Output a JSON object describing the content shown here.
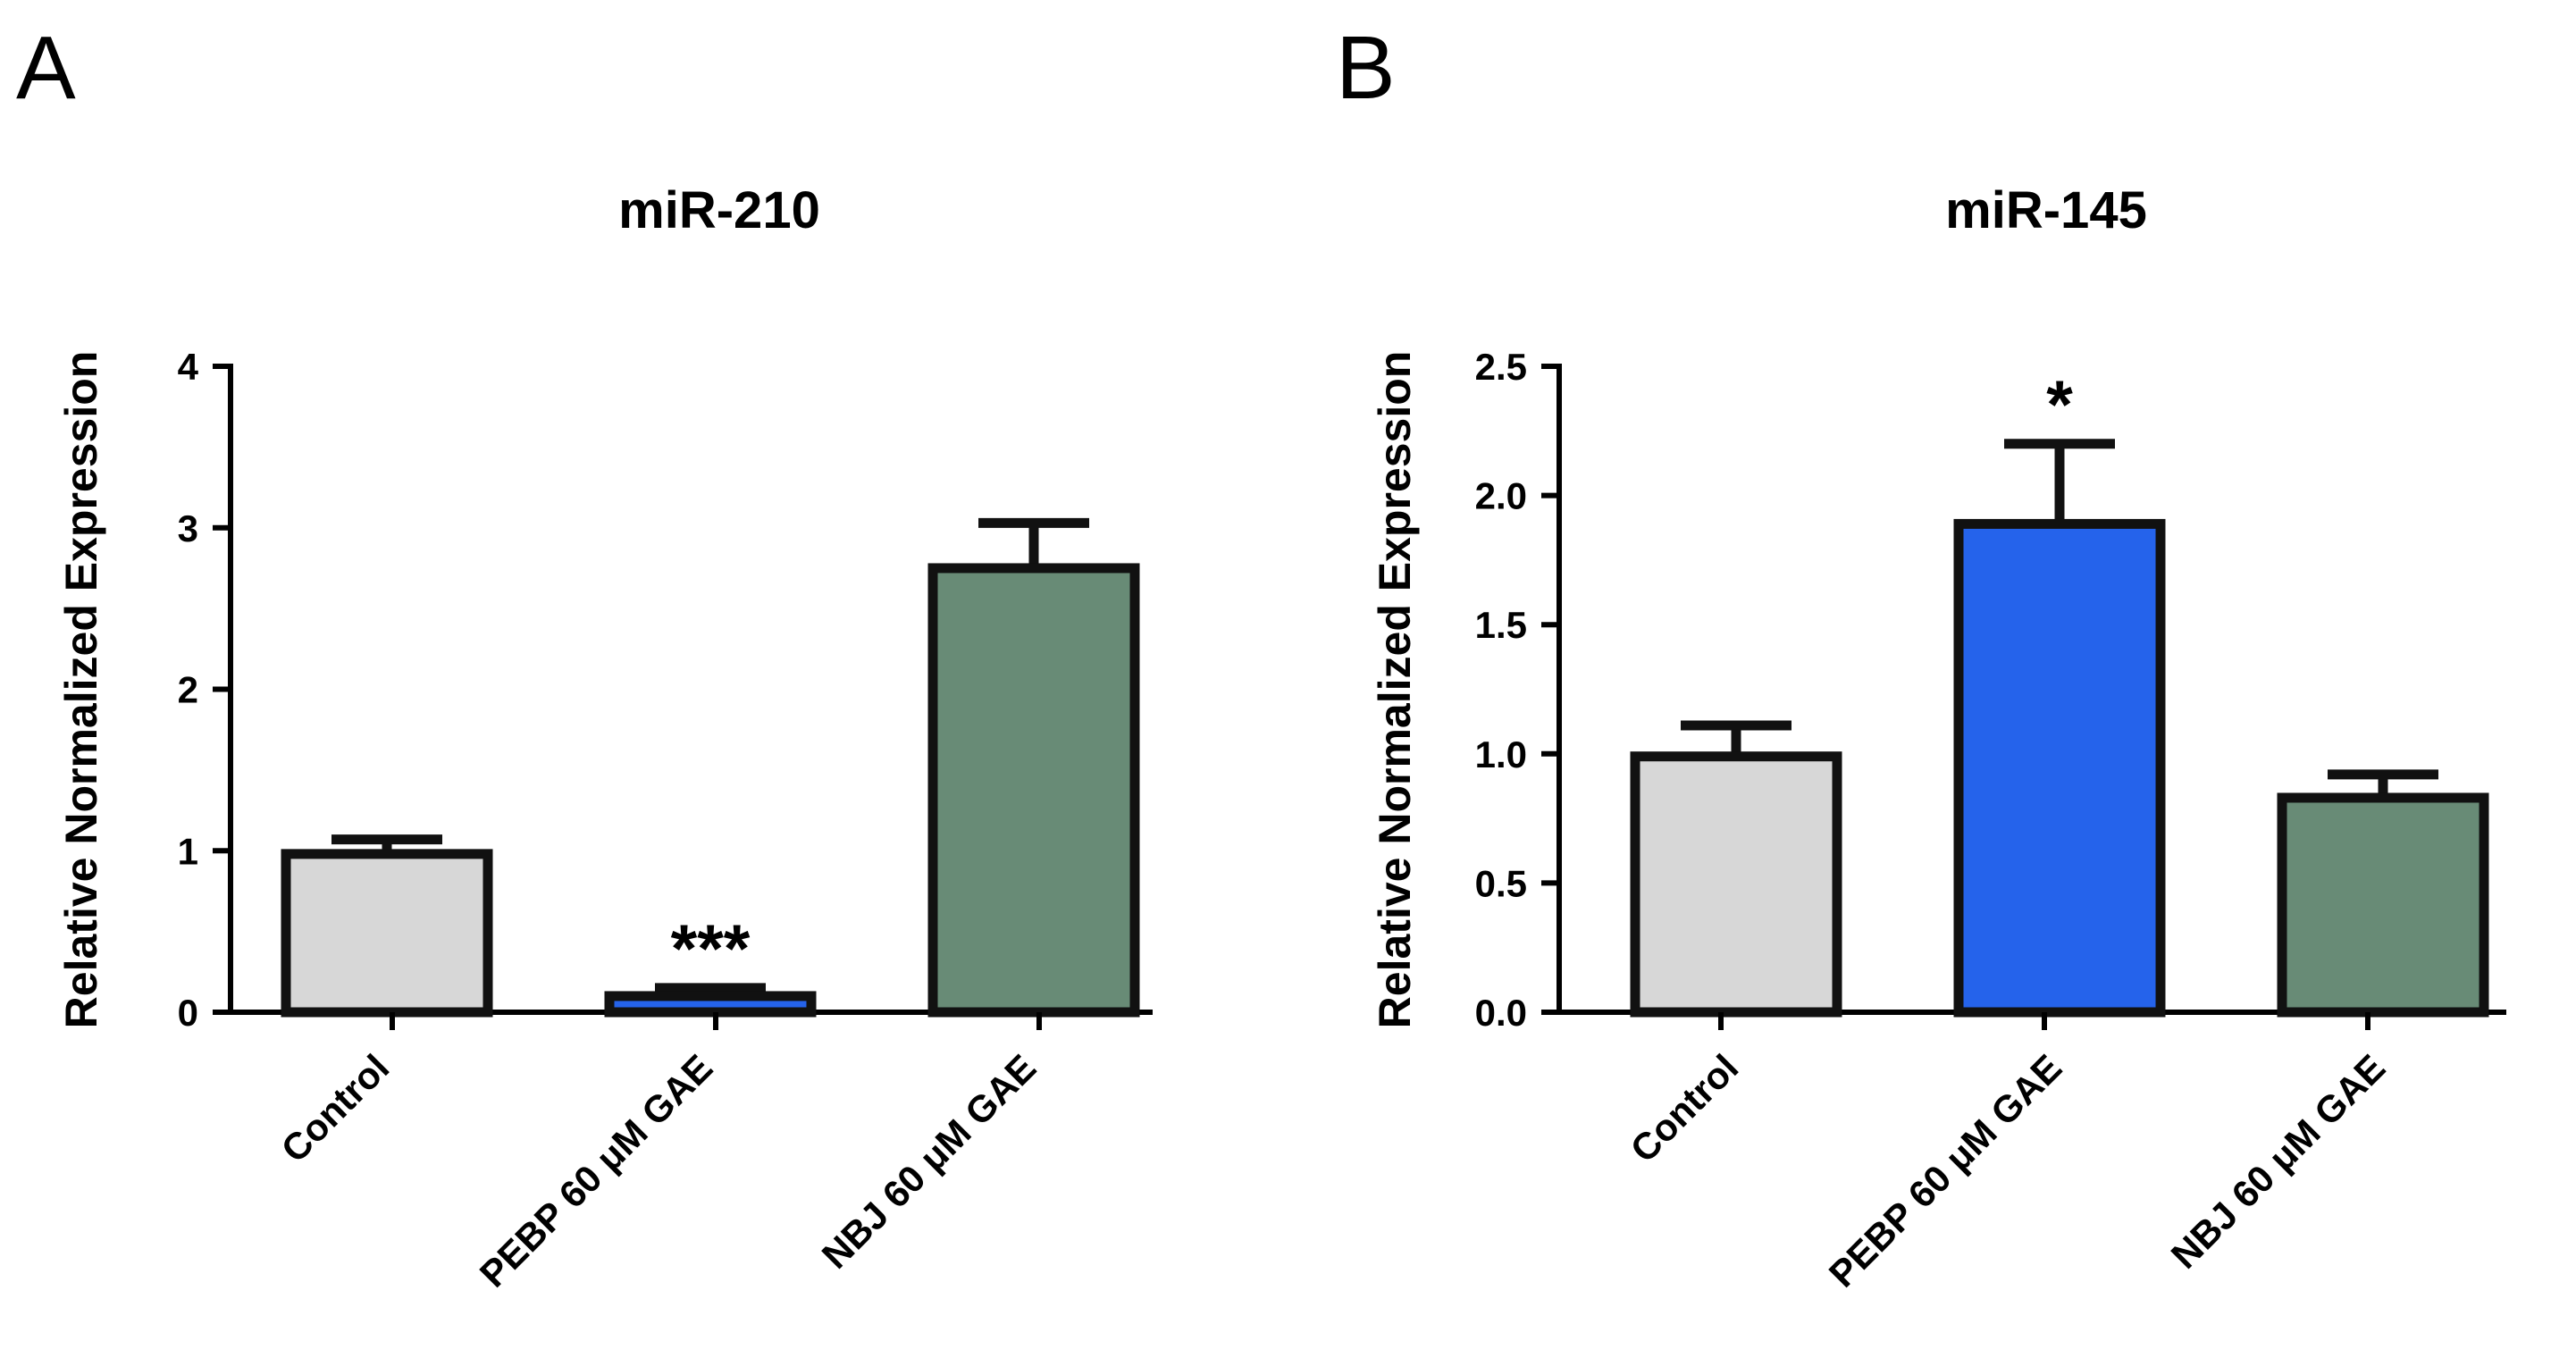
{
  "chart_data": [
    {
      "panel": "A",
      "type": "bar",
      "title": "miR-210",
      "xlabel": "",
      "ylabel": "Relative Normalized Expression",
      "ylim": [
        0,
        4
      ],
      "yticks": [
        0,
        1,
        2,
        3,
        4
      ],
      "ytick_labels": [
        "0",
        "1",
        "2",
        "3",
        "4"
      ],
      "categories": [
        "Control",
        "PEBP 60 μM GAE",
        "NBJ 60 μM GAE"
      ],
      "values": [
        0.98,
        0.1,
        2.75
      ],
      "errors": [
        0.09,
        0.05,
        0.28
      ],
      "colors": [
        "#d7d7d7",
        "#2563eb",
        "#688b76"
      ],
      "annotations": [
        "",
        "***",
        ""
      ],
      "grid": false,
      "legend": "none"
    },
    {
      "panel": "B",
      "type": "bar",
      "title": "miR-145",
      "xlabel": "",
      "ylabel": "Relative Normalized Expression",
      "ylim": [
        0,
        2.5
      ],
      "yticks": [
        0,
        0.5,
        1,
        1.5,
        2,
        2.5
      ],
      "ytick_labels": [
        "0.0",
        "0.5",
        "1.0",
        "1.5",
        "2.0",
        "2.5"
      ],
      "categories": [
        "Control",
        "PEBP 60 μM GAE",
        "NBJ 60 μM GAE"
      ],
      "values": [
        0.99,
        1.89,
        0.83
      ],
      "errors": [
        0.12,
        0.31,
        0.09
      ],
      "colors": [
        "#d7d7d7",
        "#2563eb",
        "#688b76"
      ],
      "annotations": [
        "",
        "*",
        ""
      ],
      "grid": false,
      "legend": "none"
    }
  ]
}
